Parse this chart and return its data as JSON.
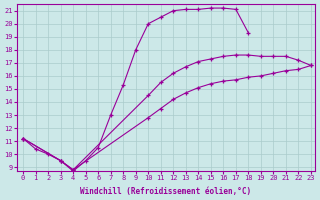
{
  "xlabel": "Windchill (Refroidissement éolien,°C)",
  "bg_color": "#cce8e8",
  "line_color": "#990099",
  "grid_color": "#aacccc",
  "xlim_min": -0.5,
  "xlim_max": 23.3,
  "ylim_min": 8.7,
  "ylim_max": 21.5,
  "yticks": [
    9,
    10,
    11,
    12,
    13,
    14,
    15,
    16,
    17,
    18,
    19,
    20,
    21
  ],
  "xticks": [
    0,
    1,
    2,
    3,
    4,
    5,
    6,
    7,
    8,
    9,
    10,
    11,
    12,
    13,
    14,
    15,
    16,
    17,
    18,
    19,
    20,
    21,
    22,
    23
  ],
  "curve1_x": [
    0,
    1,
    2,
    3,
    4,
    5,
    6,
    7,
    8,
    9,
    10,
    11,
    12,
    13,
    14,
    15,
    16,
    17,
    18
  ],
  "curve1_y": [
    11.2,
    10.4,
    10.0,
    9.5,
    8.7,
    9.5,
    10.5,
    13.0,
    15.3,
    18.0,
    20.0,
    20.5,
    21.0,
    21.1,
    21.1,
    21.2,
    21.2,
    21.1,
    19.3
  ],
  "curve2_x": [
    0,
    3,
    4,
    10,
    11,
    12,
    13,
    14,
    15,
    16,
    17,
    18,
    19,
    20,
    21,
    22,
    23
  ],
  "curve2_y": [
    11.2,
    9.5,
    8.8,
    14.5,
    15.5,
    16.2,
    16.7,
    17.1,
    17.3,
    17.5,
    17.6,
    17.6,
    17.5,
    17.5,
    17.5,
    17.2,
    16.8
  ],
  "curve3_x": [
    0,
    3,
    4,
    10,
    11,
    12,
    13,
    14,
    15,
    16,
    17,
    18,
    19,
    20,
    21,
    22,
    23
  ],
  "curve3_y": [
    11.2,
    9.5,
    8.8,
    12.8,
    13.5,
    14.2,
    14.7,
    15.1,
    15.4,
    15.6,
    15.7,
    15.9,
    16.0,
    16.2,
    16.4,
    16.5,
    16.8
  ]
}
